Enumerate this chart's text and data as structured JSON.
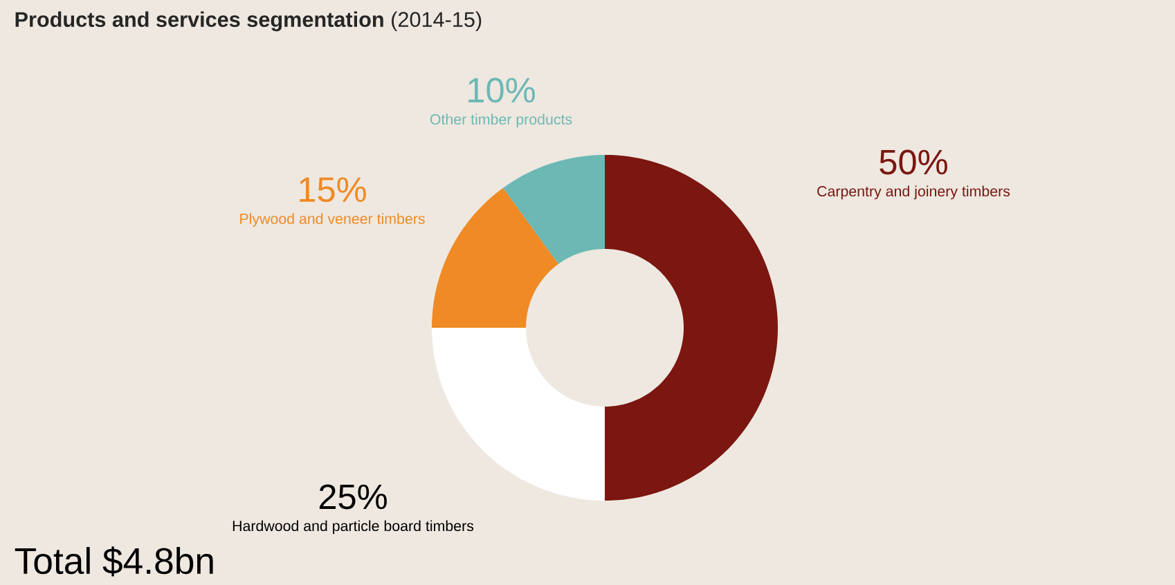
{
  "chart_data": {
    "type": "donut",
    "title": "**Products and services segmentation** (2014-15)",
    "categories": [
      "Carpentry and joinery timbers",
      "Hardwood and particle board timbers",
      "Plywood and veneer timbers",
      "Other timber products"
    ],
    "values": [
      50,
      25,
      15,
      10
    ],
    "value_labels": [
      "50%",
      "25%",
      "15%",
      "10%"
    ],
    "colors": [
      "#7b1610",
      "#ffffff",
      "#ef8a25",
      "#6cb8b5"
    ],
    "annotations": [
      "Total $4.8bn"
    ]
  }
}
